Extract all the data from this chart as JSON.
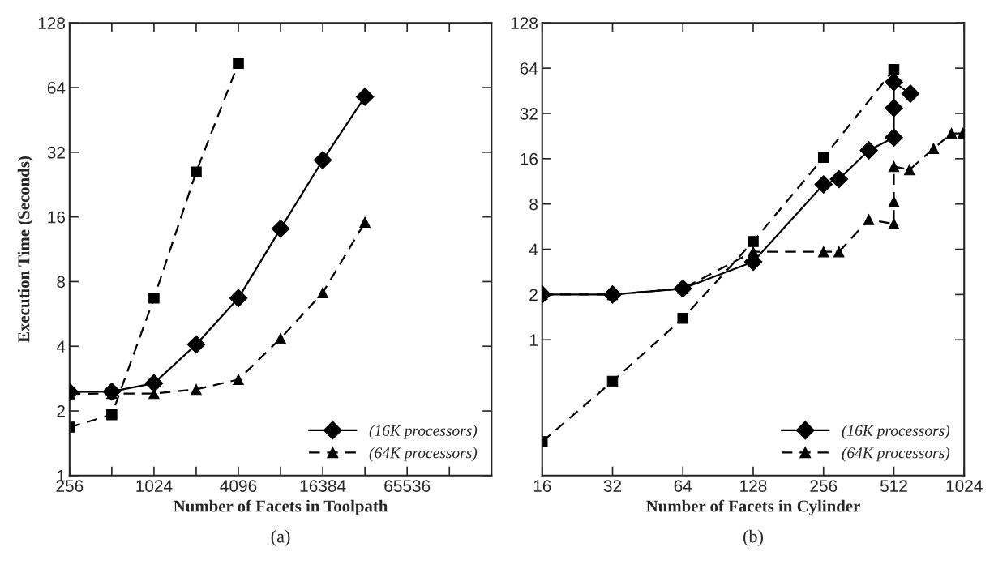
{
  "chart_data": [
    {
      "type": "line",
      "xlabel": "Number of Facets in Toolpath",
      "ylabel": "Execution Time (Seconds)",
      "annotations": [
        "(a)"
      ],
      "log": "xy",
      "legend": "bottom right",
      "grid": false,
      "xlim": [
        256,
        262144
      ],
      "xticks": [
        256,
        {
          "value": 512,
          "label": null
        },
        1024,
        {
          "value": 2048,
          "label": null
        },
        4096,
        {
          "value": 8192,
          "label": null
        },
        16384,
        {
          "value": 32768,
          "label": null
        },
        65536,
        {
          "value": 131072,
          "label": null
        }
      ],
      "ylim": [
        1,
        128
      ],
      "yticks": [
        1,
        2,
        4,
        8,
        16,
        32,
        64,
        128
      ],
      "series": [
        {
          "color": "#000000",
          "marker": "square",
          "line_style": "dashed",
          "x": [
            256,
            512,
            1024,
            2048,
            4096
          ],
          "values": [
            1.68,
            1.92,
            6.7,
            25.9,
            83
          ]
        },
        {
          "name": "(16K processors)",
          "color": "#000000",
          "marker": "diamond",
          "line_style": "solid",
          "x": [
            256,
            512,
            1024,
            2048,
            4096,
            8192,
            16384,
            32768
          ],
          "values": [
            2.45,
            2.46,
            2.69,
            4.08,
            6.7,
            14.1,
            29.4,
            58
          ]
        },
        {
          "name": "(64K processors)",
          "color": "#000000",
          "marker": "triangle",
          "line_style": "dashed",
          "x": [
            256,
            512,
            1024,
            2048,
            4096,
            8192,
            16384,
            32768
          ],
          "values": [
            2.4,
            2.41,
            2.41,
            2.52,
            2.8,
            4.35,
            7.1,
            15.1
          ]
        }
      ]
    },
    {
      "type": "line",
      "xlabel": "Number of Facets in Cylinder",
      "annotations": [
        "(b)"
      ],
      "log": "xy",
      "legend": "bottom right",
      "grid": false,
      "xlim": [
        16,
        1024
      ],
      "xticks": [
        16,
        32,
        64,
        128,
        256,
        512,
        1024
      ],
      "ylim": [
        0.125,
        128
      ],
      "yticks": [
        1,
        2,
        4,
        8,
        16,
        32,
        64,
        128
      ],
      "series": [
        {
          "color": "#000000",
          "marker": "square",
          "line_style": "dashed",
          "x": [
            16,
            32,
            64,
            128,
            256,
            512
          ],
          "values": [
            0.21,
            0.53,
            1.39,
            4.5,
            16.3,
            62.7
          ]
        },
        {
          "name": "(16K processors)",
          "color": "#000000",
          "marker": "diamond",
          "line_style": "solid",
          "x": [
            16,
            32,
            64,
            128,
            256,
            298,
            400,
            512,
            512,
            512,
            603
          ],
          "values": [
            2.0,
            2.0,
            2.19,
            3.3,
            10.8,
            11.7,
            18.2,
            22.1,
            34.8,
            51.7,
            43.3
          ]
        },
        {
          "name": "(64K processors)",
          "color": "#000000",
          "marker": "triangle",
          "line_style": "dashed",
          "x": [
            16,
            32,
            64,
            128,
            256,
            298,
            400,
            512,
            512,
            512,
            597,
            757,
            904,
            1012
          ],
          "values": [
            2.0,
            2.0,
            2.19,
            3.85,
            3.85,
            3.85,
            6.3,
            5.9,
            8.3,
            14.2,
            13.5,
            18.7,
            23.6,
            23.6
          ]
        }
      ]
    }
  ]
}
